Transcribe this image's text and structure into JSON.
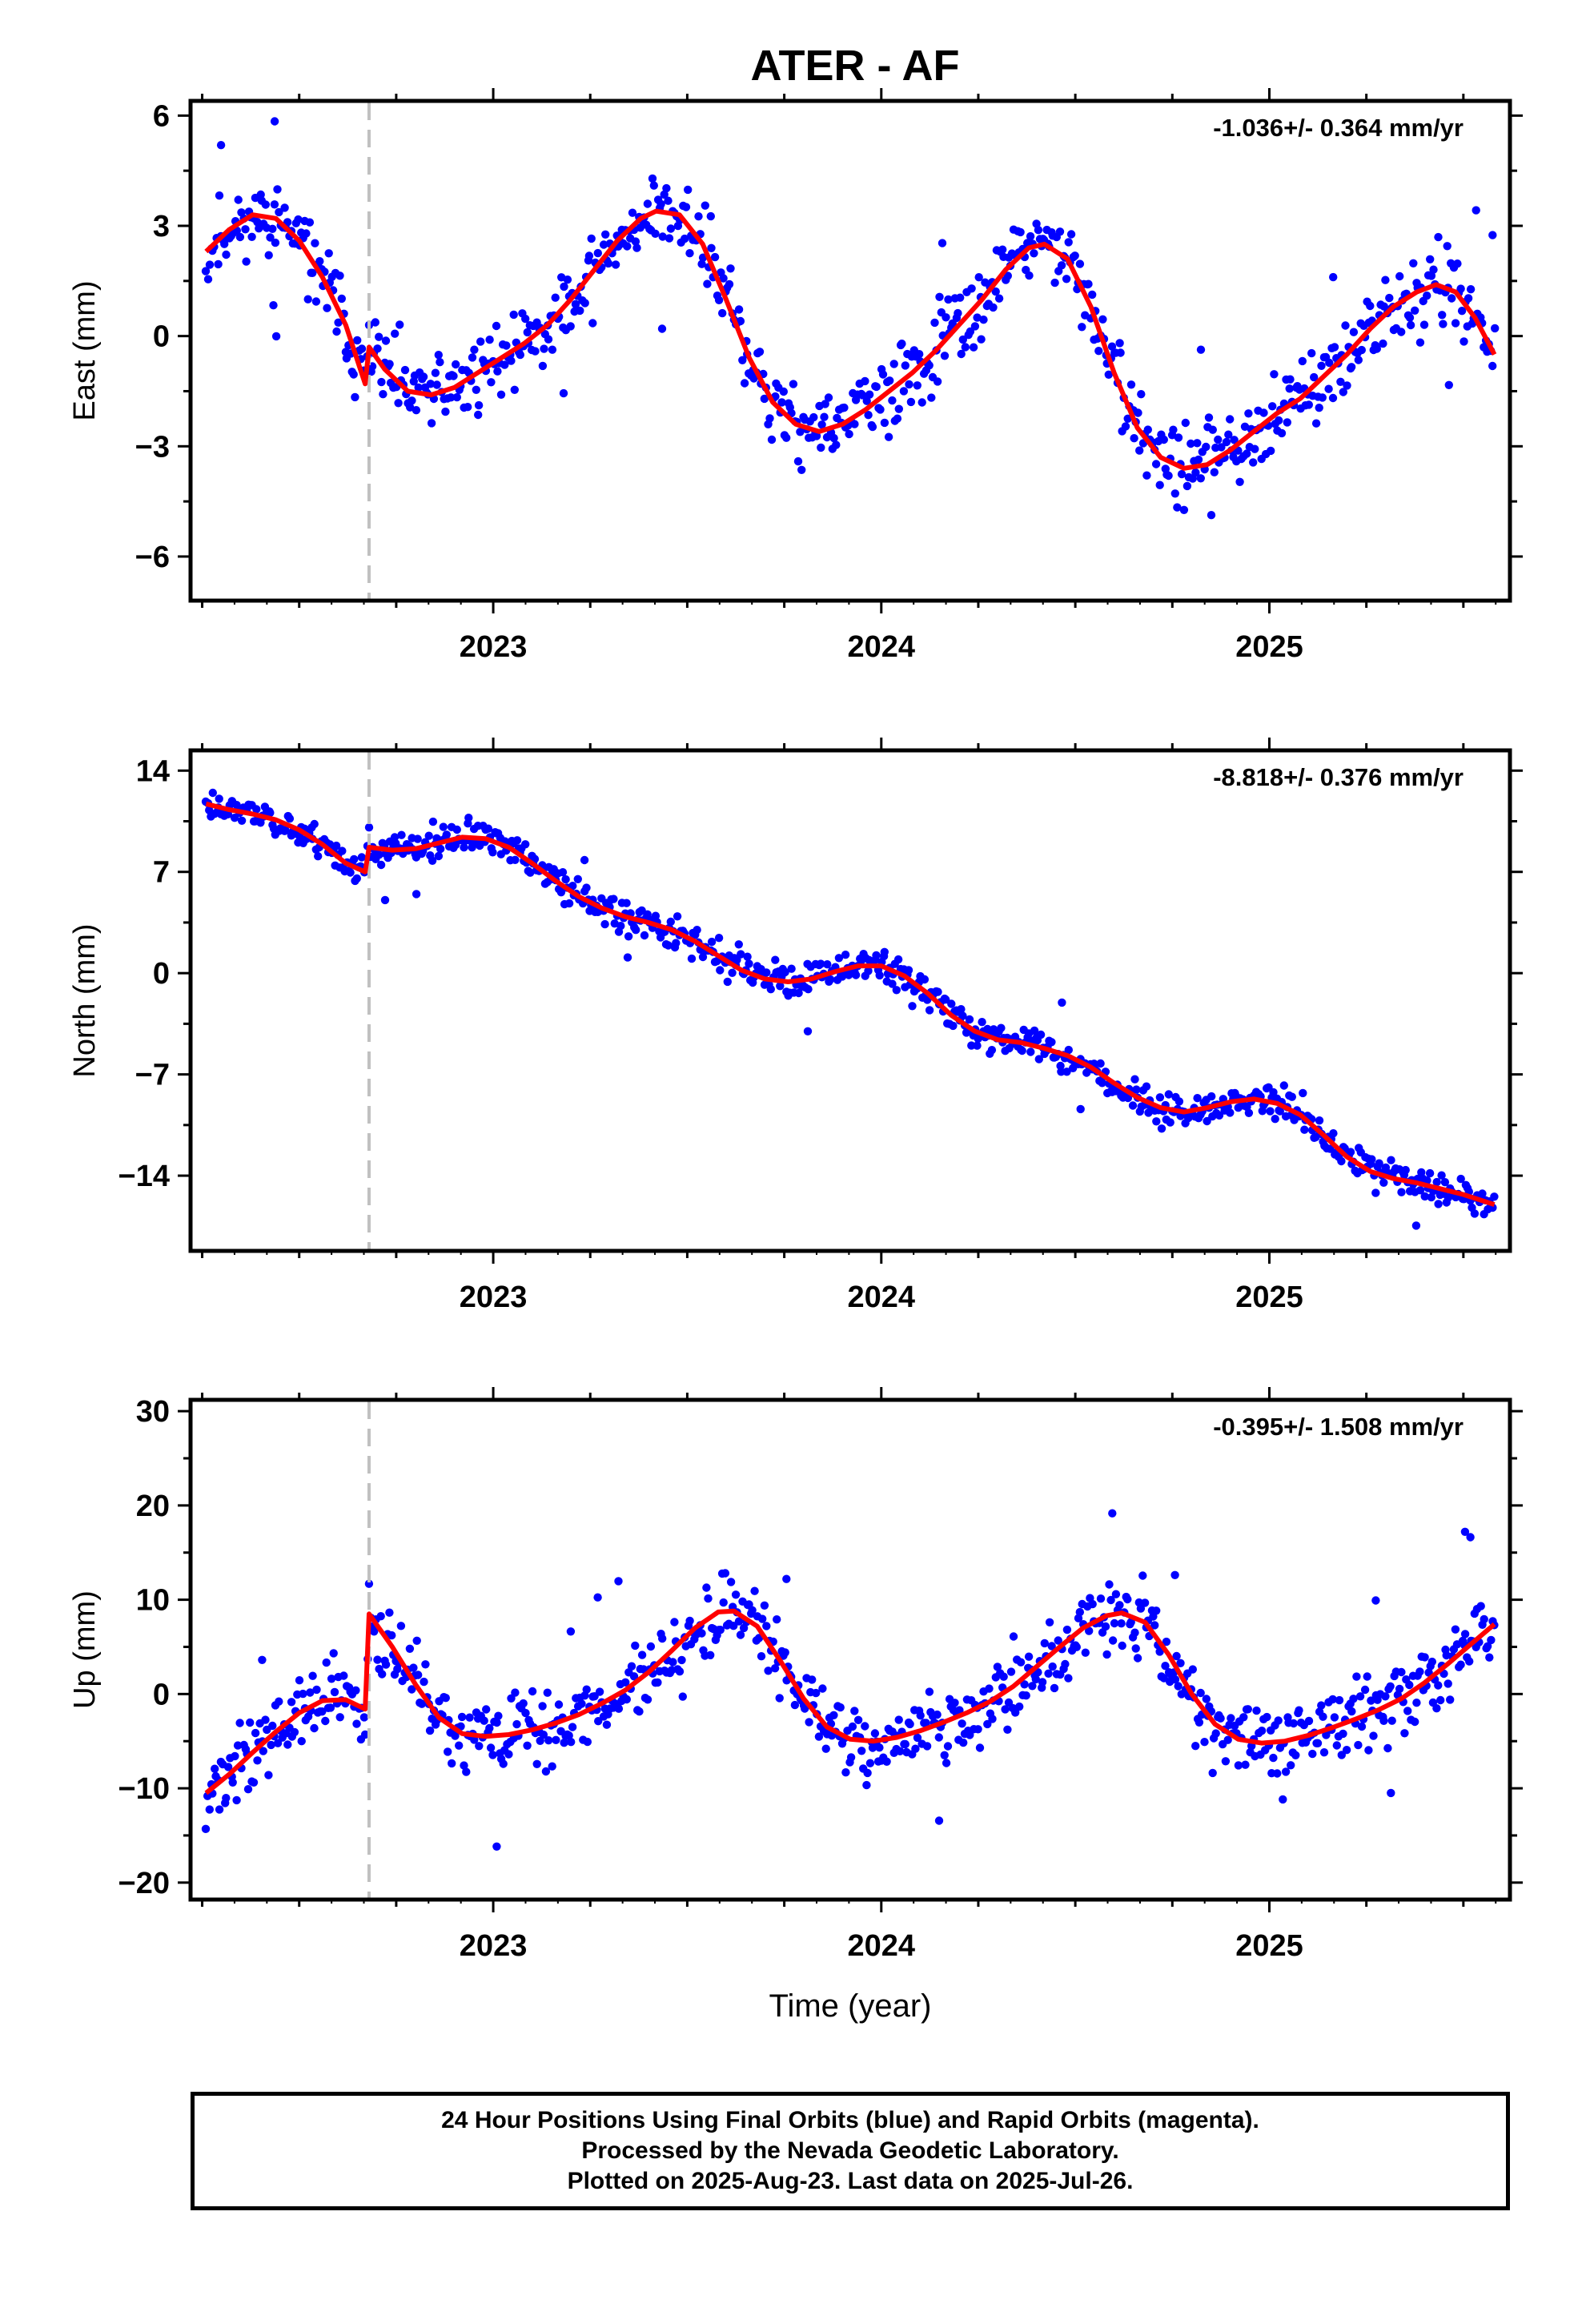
{
  "title": "ATER - AF",
  "footer": {
    "lines": [
      "24 Hour Positions Using Final Orbits (blue) and Rapid Orbits (magenta).",
      "Processed by the Nevada Geodetic Laboratory.",
      "Plotted on 2025-Aug-23. Last data on 2025-Jul-26."
    ]
  },
  "colors": {
    "points": "#0000ff",
    "fit": "#ff0000",
    "break_line": "#c0c0c0",
    "frame": "#000000"
  },
  "chart_data": [
    {
      "type": "scatter",
      "name": "east",
      "ylabel": "East (mm)",
      "xlabel": "",
      "rate_label": "-1.036+/- 0.364 mm/yr",
      "xlim": [
        2022.22,
        2025.62
      ],
      "ylim": [
        -7.2,
        6.4
      ],
      "yticks": [
        6,
        3,
        0,
        -3,
        -6
      ],
      "ytick_labels": [
        "6",
        "3",
        "0",
        "−3",
        "−6"
      ],
      "xticks": [
        2023,
        2024,
        2025
      ],
      "xtick_labels": [
        "2023",
        "2024",
        "2025"
      ],
      "equipment_change": 2022.68,
      "fit": {
        "x": [
          2022.26,
          2022.32,
          2022.38,
          2022.44,
          2022.5,
          2022.56,
          2022.62,
          2022.67,
          2022.68,
          2022.72,
          2022.78,
          2022.84,
          2022.9,
          2022.96,
          2023.02,
          2023.08,
          2023.14,
          2023.2,
          2023.26,
          2023.32,
          2023.38,
          2023.42,
          2023.48,
          2023.54,
          2023.6,
          2023.66,
          2023.72,
          2023.78,
          2023.84,
          2023.9,
          2023.96,
          2024.02,
          2024.08,
          2024.14,
          2024.2,
          2024.26,
          2024.32,
          2024.38,
          2024.42,
          2024.48,
          2024.54,
          2024.6,
          2024.66,
          2024.72,
          2024.78,
          2024.84,
          2024.9,
          2024.96,
          2025.02,
          2025.08,
          2025.14,
          2025.2,
          2025.26,
          2025.32,
          2025.38,
          2025.43,
          2025.48,
          2025.53,
          2025.58
        ],
        "y": [
          2.3,
          2.9,
          3.3,
          3.2,
          2.6,
          1.6,
          0.3,
          -1.3,
          -0.3,
          -0.9,
          -1.5,
          -1.6,
          -1.4,
          -1.0,
          -0.6,
          -0.2,
          0.3,
          1.0,
          1.8,
          2.6,
          3.2,
          3.4,
          3.3,
          2.5,
          1.0,
          -0.6,
          -1.8,
          -2.4,
          -2.6,
          -2.4,
          -2.0,
          -1.5,
          -1.0,
          -0.4,
          0.3,
          1.0,
          1.8,
          2.4,
          2.5,
          2.1,
          0.8,
          -1.0,
          -2.5,
          -3.3,
          -3.6,
          -3.5,
          -3.1,
          -2.6,
          -2.1,
          -1.7,
          -1.1,
          -0.5,
          0.2,
          0.8,
          1.2,
          1.4,
          1.2,
          0.5,
          -0.5
        ]
      },
      "scatter_model": {
        "seed": 11,
        "start": 2022.26,
        "end": 2025.58,
        "count": 760,
        "noise": 0.9,
        "outliers": 12
      }
    },
    {
      "type": "scatter",
      "name": "north",
      "ylabel": "North (mm)",
      "xlabel": "",
      "rate_label": "-8.818+/- 0.376 mm/yr",
      "xlim": [
        2022.22,
        2025.62
      ],
      "ylim": [
        -19.2,
        15.4
      ],
      "yticks": [
        14,
        7,
        0,
        -7,
        -14
      ],
      "ytick_labels": [
        "14",
        "7",
        "0",
        "−7",
        "−14"
      ],
      "xticks": [
        2023,
        2024,
        2025
      ],
      "xtick_labels": [
        "2023",
        "2024",
        "2025"
      ],
      "equipment_change": 2022.68,
      "fit": {
        "x": [
          2022.26,
          2022.32,
          2022.38,
          2022.44,
          2022.5,
          2022.56,
          2022.62,
          2022.67,
          2022.68,
          2022.74,
          2022.8,
          2022.86,
          2022.92,
          2022.98,
          2023.04,
          2023.1,
          2023.16,
          2023.22,
          2023.28,
          2023.34,
          2023.4,
          2023.46,
          2023.52,
          2023.58,
          2023.64,
          2023.7,
          2023.76,
          2023.82,
          2023.88,
          2023.94,
          2024.0,
          2024.06,
          2024.12,
          2024.18,
          2024.24,
          2024.3,
          2024.36,
          2024.42,
          2024.48,
          2024.54,
          2024.6,
          2024.66,
          2024.72,
          2024.78,
          2024.84,
          2024.9,
          2024.96,
          2025.02,
          2025.08,
          2025.14,
          2025.2,
          2025.26,
          2025.32,
          2025.38,
          2025.44,
          2025.5,
          2025.58
        ],
        "y": [
          11.7,
          11.3,
          11.0,
          10.6,
          9.9,
          8.9,
          7.6,
          7.0,
          8.7,
          8.5,
          8.6,
          9.0,
          9.4,
          9.3,
          8.7,
          7.6,
          6.4,
          5.3,
          4.5,
          3.9,
          3.5,
          3.0,
          2.2,
          1.2,
          0.2,
          -0.4,
          -0.6,
          -0.4,
          0.1,
          0.5,
          0.5,
          -0.2,
          -1.4,
          -2.9,
          -4.0,
          -4.6,
          -4.8,
          -5.2,
          -5.7,
          -6.5,
          -7.6,
          -8.6,
          -9.3,
          -9.6,
          -9.3,
          -8.9,
          -8.7,
          -9.0,
          -9.8,
          -11.2,
          -12.7,
          -13.7,
          -14.2,
          -14.5,
          -14.9,
          -15.3,
          -16.0
        ]
      },
      "scatter_model": {
        "seed": 23,
        "start": 2022.26,
        "end": 2025.58,
        "count": 760,
        "noise": 0.95,
        "outliers": 8
      }
    },
    {
      "type": "scatter",
      "name": "up",
      "ylabel": "Up (mm)",
      "xlabel": "Time (year)",
      "rate_label": "-0.395+/- 1.508 mm/yr",
      "xlim": [
        2022.22,
        2025.62
      ],
      "ylim": [
        -21.8,
        31.2
      ],
      "yticks": [
        30,
        20,
        10,
        0,
        -10,
        -20
      ],
      "ytick_labels": [
        "30",
        "20",
        "10",
        "0",
        "−10",
        "−20"
      ],
      "xticks": [
        2023,
        2024,
        2025
      ],
      "xtick_labels": [
        "2023",
        "2024",
        "2025"
      ],
      "equipment_change": 2022.68,
      "fit": {
        "x": [
          2022.26,
          2022.32,
          2022.38,
          2022.44,
          2022.5,
          2022.56,
          2022.62,
          2022.67,
          2022.68,
          2022.74,
          2022.8,
          2022.86,
          2022.92,
          2022.98,
          2023.04,
          2023.1,
          2023.16,
          2023.22,
          2023.28,
          2023.34,
          2023.4,
          2023.46,
          2023.52,
          2023.58,
          2023.62,
          2023.68,
          2023.74,
          2023.8,
          2023.86,
          2023.92,
          2023.98,
          2024.04,
          2024.1,
          2024.16,
          2024.22,
          2024.28,
          2024.34,
          2024.4,
          2024.46,
          2024.52,
          2024.58,
          2024.62,
          2024.68,
          2024.74,
          2024.8,
          2024.86,
          2024.92,
          2024.98,
          2025.04,
          2025.1,
          2025.16,
          2025.22,
          2025.28,
          2025.34,
          2025.4,
          2025.46,
          2025.52,
          2025.58
        ],
        "y": [
          -10.5,
          -8.5,
          -6.2,
          -4.0,
          -2.0,
          -0.7,
          -0.6,
          -1.6,
          8.5,
          5.0,
          1.0,
          -2.5,
          -4.2,
          -4.5,
          -4.3,
          -3.8,
          -3.1,
          -2.2,
          -1.0,
          0.4,
          2.3,
          4.6,
          7.0,
          8.7,
          8.8,
          7.2,
          3.5,
          -0.5,
          -3.5,
          -4.8,
          -5.0,
          -4.6,
          -3.9,
          -3.0,
          -2.0,
          -0.8,
          0.8,
          2.9,
          5.0,
          7.0,
          8.3,
          8.6,
          7.6,
          4.2,
          0.0,
          -3.2,
          -4.8,
          -5.2,
          -5.0,
          -4.4,
          -3.6,
          -2.7,
          -1.7,
          -0.5,
          1.2,
          3.2,
          5.3,
          7.4
        ]
      },
      "scatter_model": {
        "seed": 37,
        "start": 2022.26,
        "end": 2025.58,
        "count": 760,
        "noise": 3.3,
        "outliers": 14
      }
    }
  ]
}
